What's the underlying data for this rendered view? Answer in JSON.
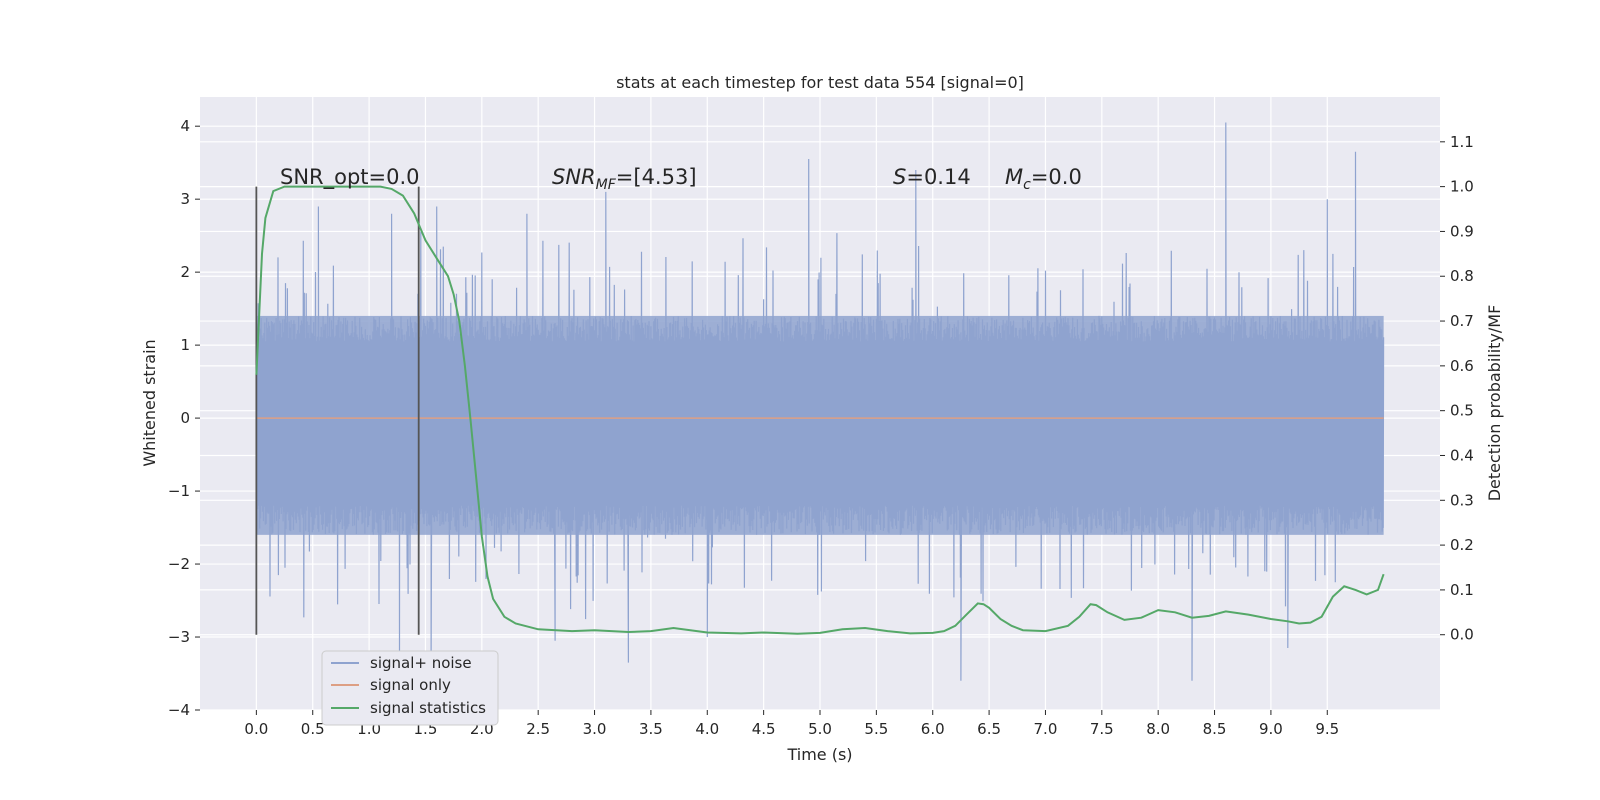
{
  "chart_data": {
    "type": "line",
    "title": "stats at each timestep for test data 554 [signal=0]",
    "xlabel": "Time (s)",
    "ylabel": "Whitened strain",
    "y2label": "Detection probability/MF",
    "xlim": [
      -0.5,
      10.5
    ],
    "ylim": [
      -4,
      4.4
    ],
    "y2lim": [
      -0.168,
      1.2
    ],
    "x_ticks": [
      "0.0",
      "0.5",
      "1.0",
      "1.5",
      "2.0",
      "2.5",
      "3.0",
      "3.5",
      "4.0",
      "4.5",
      "5.0",
      "5.5",
      "6.0",
      "6.5",
      "7.0",
      "7.5",
      "8.0",
      "8.5",
      "9.0",
      "9.5"
    ],
    "y_ticks": [
      "4",
      "3",
      "2",
      "1",
      "0",
      "−1",
      "−2",
      "−3",
      "−4"
    ],
    "y2_ticks": [
      "1.1",
      "1.0",
      "0.9",
      "0.8",
      "0.7",
      "0.6",
      "0.5",
      "0.4",
      "0.3",
      "0.2",
      "0.1",
      "0.0"
    ],
    "grid": true,
    "legend_position": "lower-left",
    "annotations": {
      "snr_opt": "SNR_opt=0.0",
      "snr_mf_main": "SNR",
      "snr_mf_sub": "MF",
      "snr_mf_value": "=[4.53]",
      "s_main": "S",
      "s_value": "=0.14",
      "mc_main": "M",
      "mc_sub": "c",
      "mc_value": "=0.0"
    },
    "window_markers_x": [
      0.0,
      1.44
    ],
    "series": [
      {
        "name": "signal+ noise",
        "color": "#8fa3cf",
        "description_values": "noise band approx ±1.4 with spikes reaching ±2 to ±3",
        "envelope_top": 1.4,
        "envelope_bottom": -1.6,
        "peaks": [
          {
            "x": 0.55,
            "y": 2.9
          },
          {
            "x": 1.2,
            "y": 2.8
          },
          {
            "x": 1.6,
            "y": 2.9
          },
          {
            "x": 2.4,
            "y": 2.8
          },
          {
            "x": 3.1,
            "y": 3.1
          },
          {
            "x": 4.9,
            "y": 3.55
          },
          {
            "x": 5.85,
            "y": 3.4
          },
          {
            "x": 8.6,
            "y": 4.05
          },
          {
            "x": 9.75,
            "y": 3.65
          },
          {
            "x": 9.5,
            "y": 3.0
          }
        ],
        "troughs": [
          {
            "x": 1.27,
            "y": -3.2
          },
          {
            "x": 1.55,
            "y": -3.3
          },
          {
            "x": 3.3,
            "y": -3.35
          },
          {
            "x": 4.0,
            "y": -3.0
          },
          {
            "x": 6.25,
            "y": -3.6
          },
          {
            "x": 8.3,
            "y": -3.6
          },
          {
            "x": 9.15,
            "y": -3.15
          },
          {
            "x": 2.65,
            "y": -3.05
          }
        ]
      },
      {
        "name": "signal only",
        "color": "#dd9f84",
        "x": [
          0.0,
          10.0
        ],
        "y": [
          0.0,
          0.0
        ]
      },
      {
        "name": "signal statistics",
        "color": "#55a868",
        "axis": "right",
        "x": [
          0.0,
          0.05,
          0.08,
          0.15,
          0.25,
          0.4,
          0.6,
          0.8,
          1.0,
          1.1,
          1.2,
          1.3,
          1.4,
          1.45,
          1.5,
          1.6,
          1.7,
          1.75,
          1.8,
          1.85,
          1.9,
          1.95,
          2.0,
          2.05,
          2.1,
          2.2,
          2.3,
          2.5,
          2.8,
          3.0,
          3.3,
          3.5,
          3.7,
          4.0,
          4.3,
          4.5,
          4.8,
          5.0,
          5.2,
          5.4,
          5.6,
          5.8,
          6.0,
          6.1,
          6.2,
          6.3,
          6.4,
          6.45,
          6.5,
          6.6,
          6.7,
          6.8,
          7.0,
          7.2,
          7.3,
          7.4,
          7.45,
          7.55,
          7.7,
          7.85,
          8.0,
          8.15,
          8.3,
          8.45,
          8.6,
          8.8,
          9.0,
          9.15,
          9.25,
          9.35,
          9.45,
          9.55,
          9.65,
          9.75,
          9.85,
          9.95,
          10.0
        ],
        "y": [
          0.58,
          0.85,
          0.93,
          0.99,
          1.0,
          1.0,
          1.0,
          1.0,
          1.0,
          1.0,
          0.995,
          0.98,
          0.94,
          0.91,
          0.88,
          0.84,
          0.8,
          0.76,
          0.7,
          0.6,
          0.48,
          0.35,
          0.22,
          0.13,
          0.08,
          0.04,
          0.025,
          0.012,
          0.008,
          0.01,
          0.006,
          0.008,
          0.015,
          0.005,
          0.003,
          0.005,
          0.002,
          0.004,
          0.012,
          0.015,
          0.008,
          0.003,
          0.004,
          0.008,
          0.02,
          0.045,
          0.07,
          0.068,
          0.06,
          0.035,
          0.02,
          0.01,
          0.008,
          0.02,
          0.04,
          0.068,
          0.066,
          0.05,
          0.033,
          0.038,
          0.055,
          0.05,
          0.038,
          0.042,
          0.052,
          0.045,
          0.035,
          0.03,
          0.025,
          0.027,
          0.04,
          0.085,
          0.108,
          0.1,
          0.09,
          0.1,
          0.135
        ]
      }
    ]
  }
}
